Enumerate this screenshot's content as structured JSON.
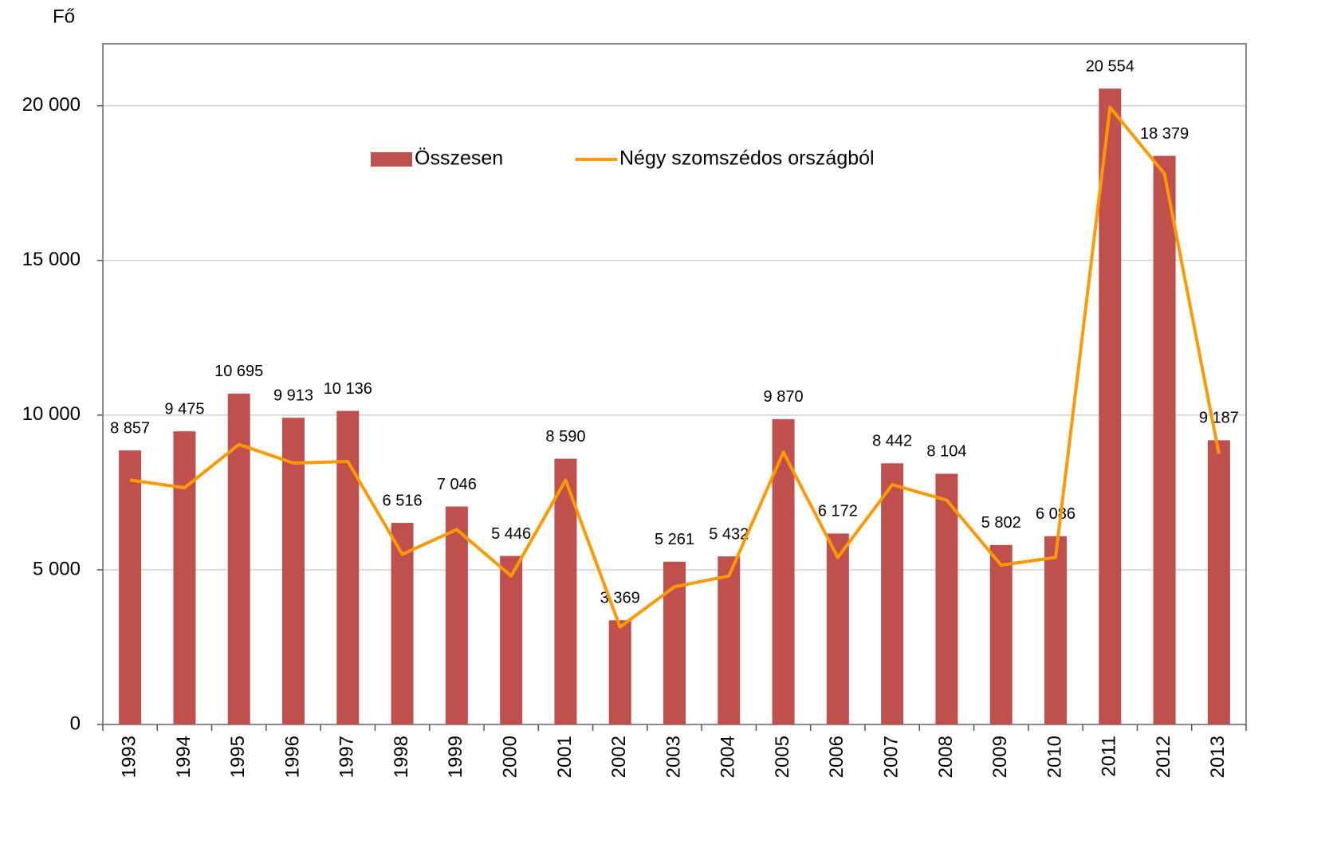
{
  "chart_data": {
    "type": "bar_line",
    "y_unit_label": "Fő",
    "categories": [
      "1993",
      "1994",
      "1995",
      "1996",
      "1997",
      "1998",
      "1999",
      "2000",
      "2001",
      "2002",
      "2003",
      "2004",
      "2005",
      "2006",
      "2007",
      "2008",
      "2009",
      "2010",
      "2011",
      "2012",
      "2013"
    ],
    "series": [
      {
        "name": "Összesen",
        "type": "bar",
        "color": "#c0504d",
        "values": [
          8857,
          9475,
          10695,
          9913,
          10136,
          6516,
          7046,
          5446,
          8590,
          3369,
          5261,
          5432,
          9870,
          6172,
          8442,
          8104,
          5802,
          6086,
          20554,
          18379,
          9187
        ],
        "value_labels": [
          "8 857",
          "9 475",
          "10 695",
          "9 913",
          "10 136",
          "6 516",
          "7 046",
          "5 446",
          "8 590",
          "3 369",
          "5 261",
          "5 432",
          "9 870",
          "6 172",
          "8 442",
          "8 104",
          "5 802",
          "6 086",
          "20 554",
          "18 379",
          "9 187"
        ]
      },
      {
        "name": "Négy szomszédos országból",
        "type": "line",
        "color": "#ff9900",
        "values": [
          7900,
          7650,
          9050,
          8450,
          8500,
          5500,
          6300,
          4800,
          7900,
          3150,
          4450,
          4800,
          8800,
          5400,
          7750,
          7250,
          5150,
          5400,
          19950,
          17800,
          8750
        ]
      }
    ],
    "ylim": [
      0,
      22000
    ],
    "yticks": [
      0,
      {
        "value": 5000,
        "label": "5 000"
      },
      {
        "value": 10000,
        "label": "10 000"
      },
      {
        "value": 15000,
        "label": "15 000"
      },
      {
        "value": 20000,
        "label": "20 000"
      }
    ],
    "grid": true
  }
}
